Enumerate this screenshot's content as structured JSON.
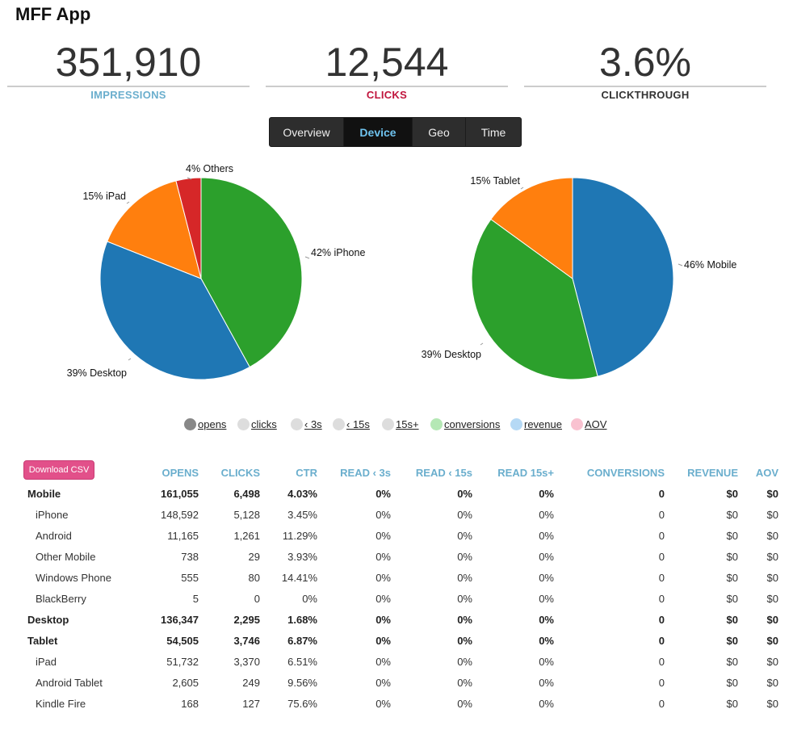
{
  "app": {
    "title": "MFF App"
  },
  "stats": [
    {
      "value": "351,910",
      "label": "IMPRESSIONS",
      "color": "#6aaecd"
    },
    {
      "value": "12,544",
      "label": "CLICKS",
      "color": "#c0143c"
    },
    {
      "value": "3.6%",
      "label": "CLICKTHROUGH",
      "color": "#333333"
    }
  ],
  "tabs": [
    {
      "label": "Overview",
      "active": false
    },
    {
      "label": "Device",
      "active": true
    },
    {
      "label": "Geo",
      "active": false
    },
    {
      "label": "Time",
      "active": false
    }
  ],
  "chart_data": [
    {
      "type": "pie",
      "title": "",
      "slices": [
        {
          "label": "iPhone",
          "value": 42,
          "text": "42% iPhone",
          "color": "#2ca02c"
        },
        {
          "label": "Desktop",
          "value": 39,
          "text": "39% Desktop",
          "color": "#1f77b4"
        },
        {
          "label": "iPad",
          "value": 15,
          "text": "15% iPad",
          "color": "#ff7f0e"
        },
        {
          "label": "Others",
          "value": 4,
          "text": "4% Others",
          "color": "#d62728"
        }
      ]
    },
    {
      "type": "pie",
      "title": "",
      "slices": [
        {
          "label": "Mobile",
          "value": 46,
          "text": "46% Mobile",
          "color": "#1f77b4"
        },
        {
          "label": "Desktop",
          "value": 39,
          "text": "39% Desktop",
          "color": "#2ca02c"
        },
        {
          "label": "Tablet",
          "value": 15,
          "text": "15% Tablet",
          "color": "#ff7f0e"
        }
      ]
    }
  ],
  "legend": [
    {
      "label": "opens",
      "color": "#888888"
    },
    {
      "label": "clicks",
      "color": "#dddddd"
    },
    {
      "label": "‹ 3s",
      "color": "#dddddd"
    },
    {
      "label": "‹ 15s",
      "color": "#dddddd"
    },
    {
      "label": "15s+",
      "color": "#dddddd"
    },
    {
      "label": "conversions",
      "color": "#b5e8b5"
    },
    {
      "label": "revenue",
      "color": "#b5d9f5"
    },
    {
      "label": "AOV",
      "color": "#f9c2d0"
    }
  ],
  "download": {
    "label": "Download CSV"
  },
  "table": {
    "columns": [
      "OPENS",
      "CLICKS",
      "CTR",
      "READ ‹ 3s",
      "READ ‹ 15s",
      "READ 15s+",
      "CONVERSIONS",
      "REVENUE",
      "AOV"
    ],
    "rows": [
      {
        "group": true,
        "name": "Mobile",
        "cells": [
          "161,055",
          "6,498",
          "4.03%",
          "0%",
          "0%",
          "0%",
          "0",
          "$0",
          "$0"
        ]
      },
      {
        "group": false,
        "name": "iPhone",
        "cells": [
          "148,592",
          "5,128",
          "3.45%",
          "0%",
          "0%",
          "0%",
          "0",
          "$0",
          "$0"
        ]
      },
      {
        "group": false,
        "name": "Android",
        "cells": [
          "11,165",
          "1,261",
          "11.29%",
          "0%",
          "0%",
          "0%",
          "0",
          "$0",
          "$0"
        ]
      },
      {
        "group": false,
        "name": "Other Mobile",
        "cells": [
          "738",
          "29",
          "3.93%",
          "0%",
          "0%",
          "0%",
          "0",
          "$0",
          "$0"
        ]
      },
      {
        "group": false,
        "name": "Windows Phone",
        "cells": [
          "555",
          "80",
          "14.41%",
          "0%",
          "0%",
          "0%",
          "0",
          "$0",
          "$0"
        ]
      },
      {
        "group": false,
        "name": "BlackBerry",
        "cells": [
          "5",
          "0",
          "0%",
          "0%",
          "0%",
          "0%",
          "0",
          "$0",
          "$0"
        ]
      },
      {
        "group": true,
        "name": "Desktop",
        "cells": [
          "136,347",
          "2,295",
          "1.68%",
          "0%",
          "0%",
          "0%",
          "0",
          "$0",
          "$0"
        ]
      },
      {
        "group": true,
        "name": "Tablet",
        "cells": [
          "54,505",
          "3,746",
          "6.87%",
          "0%",
          "0%",
          "0%",
          "0",
          "$0",
          "$0"
        ]
      },
      {
        "group": false,
        "name": "iPad",
        "cells": [
          "51,732",
          "3,370",
          "6.51%",
          "0%",
          "0%",
          "0%",
          "0",
          "$0",
          "$0"
        ]
      },
      {
        "group": false,
        "name": "Android Tablet",
        "cells": [
          "2,605",
          "249",
          "9.56%",
          "0%",
          "0%",
          "0%",
          "0",
          "$0",
          "$0"
        ]
      },
      {
        "group": false,
        "name": "Kindle Fire",
        "cells": [
          "168",
          "127",
          "75.6%",
          "0%",
          "0%",
          "0%",
          "0",
          "$0",
          "$0"
        ]
      }
    ]
  }
}
